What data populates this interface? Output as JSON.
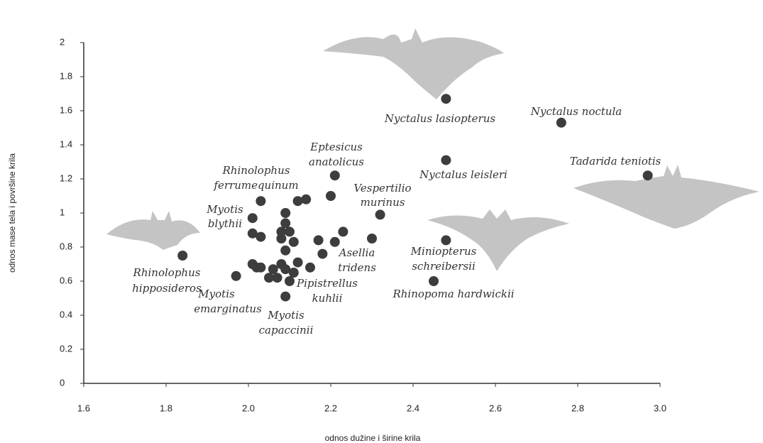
{
  "chart_data": {
    "type": "scatter",
    "xlabel": "odnos dužine i širine krila",
    "ylabel": "odnos mase tela i površine krila",
    "xlim": [
      1.6,
      3.0
    ],
    "ylim": [
      0,
      2
    ],
    "xticks": [
      1.6,
      1.8,
      {
        "value": 2,
        "label": "2.0"
      },
      2.2,
      2.4,
      2.6,
      2.8,
      {
        "value": 3,
        "label": "3.0"
      }
    ],
    "yticks": [
      0,
      0.2,
      0.4,
      0.6,
      0.8,
      1,
      1.2,
      1.4,
      1.6,
      1.8,
      2
    ],
    "color": "#3d3d3d",
    "x": [
      1.84,
      1.97,
      2.03,
      2.01,
      2.01,
      2.03,
      2.01,
      2.02,
      2.03,
      2.05,
      2.06,
      2.07,
      2.09,
      2.09,
      2.08,
      2.1,
      2.08,
      2.11,
      2.09,
      2.08,
      2.09,
      2.1,
      2.11,
      2.12,
      2.12,
      2.14,
      2.15,
      2.09,
      2.17,
      2.18,
      2.2,
      2.21,
      2.21,
      2.23,
      2.3,
      2.32,
      2.48,
      2.48,
      2.48,
      2.45,
      2.76,
      2.97
    ],
    "values": [
      0.75,
      0.63,
      1.07,
      0.97,
      0.88,
      0.86,
      0.7,
      0.68,
      0.68,
      0.62,
      0.67,
      0.62,
      1.0,
      0.94,
      0.89,
      0.89,
      0.85,
      0.83,
      0.78,
      0.7,
      0.67,
      0.6,
      0.65,
      0.71,
      1.07,
      1.08,
      0.68,
      0.51,
      0.84,
      0.76,
      1.1,
      1.22,
      0.83,
      0.89,
      0.85,
      0.99,
      1.67,
      1.31,
      0.84,
      0.6,
      1.53,
      1.22
    ],
    "annotations": [
      "Nyctalus lasiopterus",
      "Nyctalus noctula",
      "Nyctalus leisleri",
      "Tadarida teniotis",
      "Eptesicus",
      "anatolicus",
      "Rhinolophus",
      "ferrumequinum",
      "Vespertilio",
      "murinus",
      "Myotis",
      "blythii",
      "Asellia",
      "tridens",
      "Miniopterus",
      "schreibersii",
      "Rhinolophus",
      "hipposideros",
      "Pipistrellus",
      "kuhlii",
      "Rhinopoma hardwickii",
      "Myotis",
      "emarginatus",
      "Myotis",
      "capaccinii"
    ]
  }
}
